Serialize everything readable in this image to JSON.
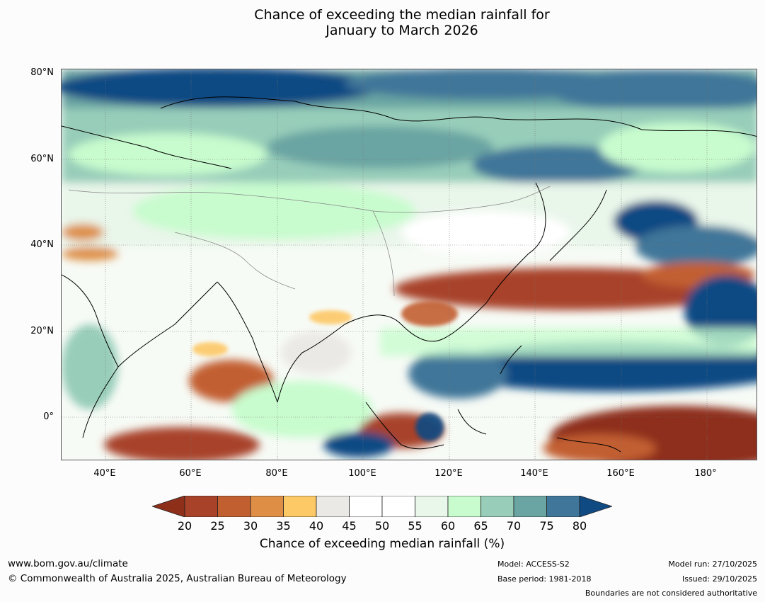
{
  "title": {
    "line1": "Chance of exceeding the median rainfall for",
    "line2": "January to March 2026"
  },
  "map": {
    "lat_labels": [
      "80°N",
      "60°N",
      "40°N",
      "20°N",
      "0°"
    ],
    "lon_labels": [
      "40°E",
      "60°E",
      "80°E",
      "100°E",
      "120°E",
      "140°E",
      "160°E",
      "180°"
    ]
  },
  "colorbar": {
    "ticks": [
      "20",
      "25",
      "30",
      "35",
      "40",
      "45",
      "50",
      "55",
      "60",
      "65",
      "70",
      "75",
      "80"
    ],
    "label": "Chance of exceeding median rainfall (%)",
    "colors": [
      "#8e2f1a",
      "#a8432a",
      "#c25f30",
      "#de8f45",
      "#fdc866",
      "#ebe9e5",
      "#ffffff",
      "#ffffff",
      "#e9f6ea",
      "#c8fcce",
      "#97cdb9",
      "#6aa4a3",
      "#3f7699",
      "#0f4a83"
    ]
  },
  "footer": {
    "website": "www.bom.gov.au/climate",
    "copyright": "© Commonwealth of Australia 2025, Australian Bureau of Meteorology",
    "model": "Model: ACCESS-S2",
    "base_period": "Base period: 1981-2018",
    "model_run": "Model run: 27/10/2025",
    "issued": "Issued: 29/10/2025",
    "disclaimer": "Boundaries are not considered authoritative"
  }
}
